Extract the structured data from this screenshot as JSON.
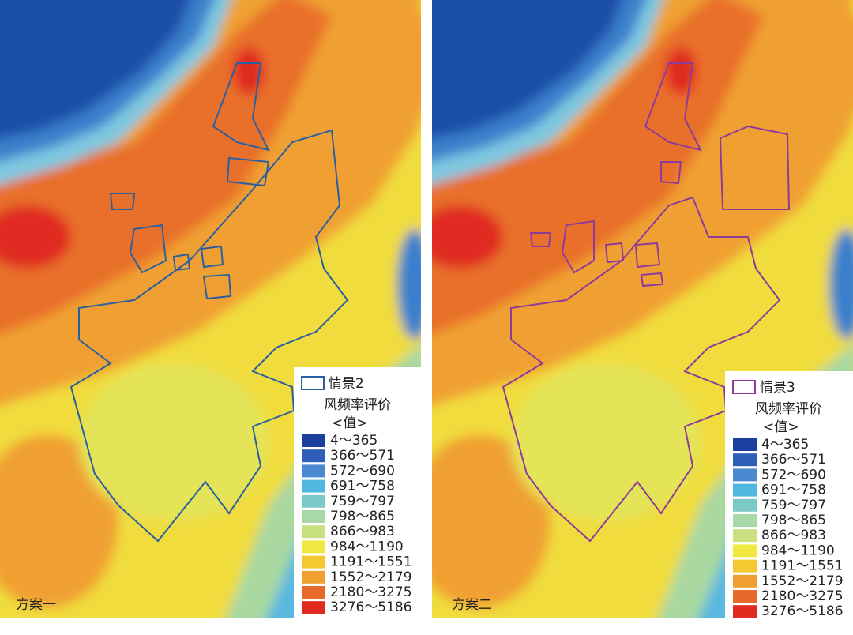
{
  "panels": [
    {
      "label": "方案一",
      "outline_color": "#2a5fa0",
      "legend": {
        "scenario": "情景2",
        "title": "风频率评价",
        "subtitle": "<值>",
        "classes": [
          {
            "label": "4～365",
            "color": "#1a3f9e"
          },
          {
            "label": "366～571",
            "color": "#2e5fb8"
          },
          {
            "label": "572～690",
            "color": "#4a88d0"
          },
          {
            "label": "691～758",
            "color": "#50b8e0"
          },
          {
            "label": "759～797",
            "color": "#7ccac8"
          },
          {
            "label": "798～865",
            "color": "#a8d8a8"
          },
          {
            "label": "866～983",
            "color": "#c8e080"
          },
          {
            "label": "984～1190",
            "color": "#f0e840"
          },
          {
            "label": "1191～1551",
            "color": "#f4c830"
          },
          {
            "label": "1552～2179",
            "color": "#f0a030"
          },
          {
            "label": "2180～3275",
            "color": "#e86a2a"
          },
          {
            "label": "3276～5186",
            "color": "#e02a20"
          }
        ]
      }
    },
    {
      "label": "方案二",
      "outline_color": "#8e3a9a",
      "legend": {
        "scenario": "情景3",
        "title": "风频率评价",
        "subtitle": "<值>",
        "classes": [
          {
            "label": "4～365",
            "color": "#1a3f9e"
          },
          {
            "label": "366～571",
            "color": "#2e5fb8"
          },
          {
            "label": "572～690",
            "color": "#4a88d0"
          },
          {
            "label": "691～758",
            "color": "#50b8e0"
          },
          {
            "label": "759～797",
            "color": "#7ccac8"
          },
          {
            "label": "798～865",
            "color": "#a8d8a8"
          },
          {
            "label": "866～983",
            "color": "#c8e080"
          },
          {
            "label": "984～1190",
            "color": "#f0e840"
          },
          {
            "label": "1191～1551",
            "color": "#f4c830"
          },
          {
            "label": "1552～2179",
            "color": "#f0a030"
          },
          {
            "label": "2180～3275",
            "color": "#e86a2a"
          },
          {
            "label": "3276～5186",
            "color": "#e02a20"
          }
        ]
      }
    }
  ]
}
